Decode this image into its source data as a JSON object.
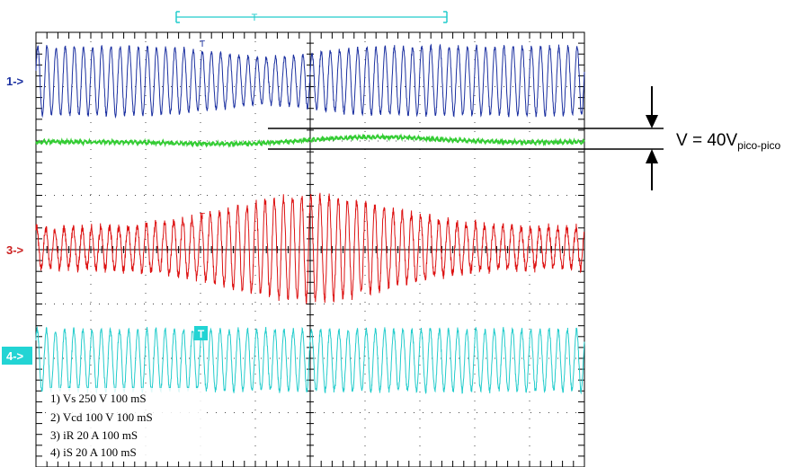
{
  "chart_data": {
    "type": "line",
    "title": "",
    "grid": true,
    "divisions": {
      "horizontal": 10,
      "vertical": 8
    },
    "channels": [
      {
        "id": "1",
        "marker": "1->",
        "label": "1) Vs  250  V    100 mS",
        "color": "#1a2fa0",
        "waveform": "sinusoid",
        "envelope": "slight dip near trigger, constant otherwise",
        "relative_amplitude_div": 0.9
      },
      {
        "id": "2",
        "marker": "",
        "label": "2) Vcd  100  V    100 mS",
        "color": "#33cc33",
        "waveform": "noisy dc with slow oscillation",
        "relative_amplitude_div": 0.15
      },
      {
        "id": "3",
        "marker": "3->",
        "label": "3) iR  20  A    100 mS",
        "color": "#dd1111",
        "waveform": "sinusoid",
        "envelope": "grows to max at trigger then decays",
        "relative_amplitude_div": 1.0
      },
      {
        "id": "4",
        "marker": "4->",
        "label": "4) iS  20  A    100 mS",
        "color": "#22cccc",
        "waveform": "sinusoid",
        "envelope": "constant",
        "relative_amplitude_div": 0.65
      }
    ],
    "trigger_marker": "T",
    "annotation": {
      "main": "V = 40V",
      "subscript": "pico-pico"
    }
  }
}
